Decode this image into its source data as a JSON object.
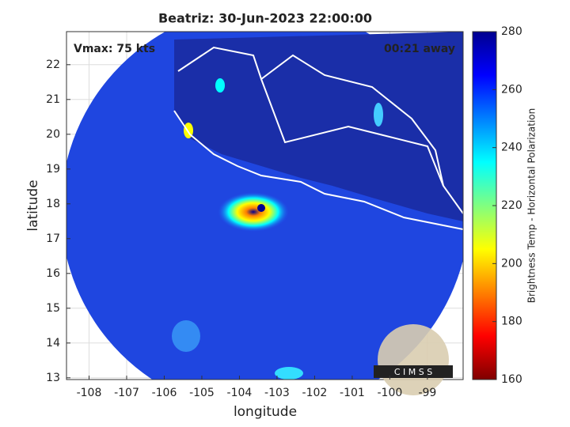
{
  "chart_data": {
    "type": "map",
    "title": "Beatriz: 30-Jun-2023 22:00:00",
    "annotations": [
      "Vmax: 75 kts",
      "00:21 away"
    ],
    "logo": "C I M S S",
    "xlabel": "longitude",
    "ylabel": "latitude",
    "xlim": [
      -108.6,
      -98.05
    ],
    "ylim": [
      12.95,
      22.95
    ],
    "xticks": [
      -108,
      -107,
      -106,
      -105,
      -104,
      -103,
      -102,
      -101,
      -100,
      -99
    ],
    "yticks": [
      13,
      14,
      15,
      16,
      17,
      18,
      19,
      20,
      21,
      22
    ],
    "grid": true,
    "colorbar": {
      "label": "Brightness Temp - Horizontal Polarization",
      "lim": [
        160,
        280
      ],
      "ticks": [
        160,
        180,
        200,
        220,
        240,
        260,
        280
      ],
      "colormap": [
        "#7f0000",
        "#ff0000",
        "#ff8000",
        "#ffff00",
        "#80ff80",
        "#00ffff",
        "#0080ff",
        "#0000ff",
        "#00008f"
      ]
    }
  }
}
